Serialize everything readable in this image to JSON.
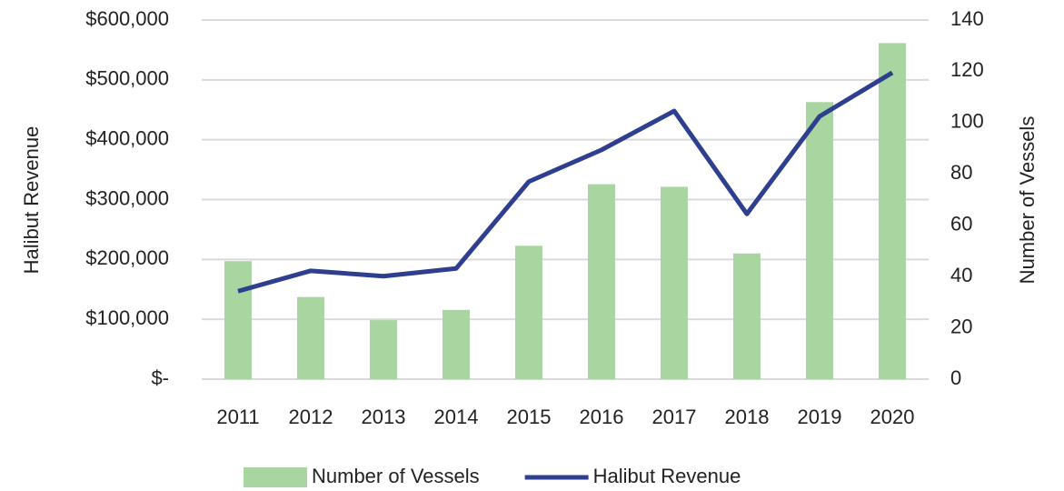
{
  "chart_data": {
    "type": "combo",
    "categories": [
      "2011",
      "2012",
      "2013",
      "2014",
      "2015",
      "2016",
      "2017",
      "2018",
      "2019",
      "2020"
    ],
    "ylabel": "Halibut Revenue",
    "y2label": "Number of Vessels",
    "series": [
      {
        "name": "Number of Vessels",
        "type": "bar",
        "axis": "y2",
        "color": "#a9d5a1",
        "values": [
          46,
          32,
          23,
          27,
          52,
          76,
          75,
          49,
          108,
          131
        ]
      },
      {
        "name": "Halibut Revenue",
        "type": "line",
        "axis": "y",
        "color": "#2e3f8f",
        "values": [
          147000,
          181000,
          172000,
          185000,
          330000,
          383000,
          448000,
          276000,
          439000,
          512000
        ]
      }
    ],
    "ylim": [
      0,
      600000
    ],
    "yticks": [
      {
        "value": 0,
        "label": "$-"
      },
      {
        "value": 100000,
        "label": "$100,000"
      },
      {
        "value": 200000,
        "label": "$200,000"
      },
      {
        "value": 300000,
        "label": "$300,000"
      },
      {
        "value": 400000,
        "label": "$400,000"
      },
      {
        "value": 500000,
        "label": "$500,000"
      },
      {
        "value": 600000,
        "label": "$600,000"
      }
    ],
    "y2lim": [
      0,
      140
    ],
    "y2ticks": [
      0,
      20,
      40,
      60,
      80,
      100,
      120,
      140
    ],
    "grid": true,
    "legend": "bottom"
  }
}
